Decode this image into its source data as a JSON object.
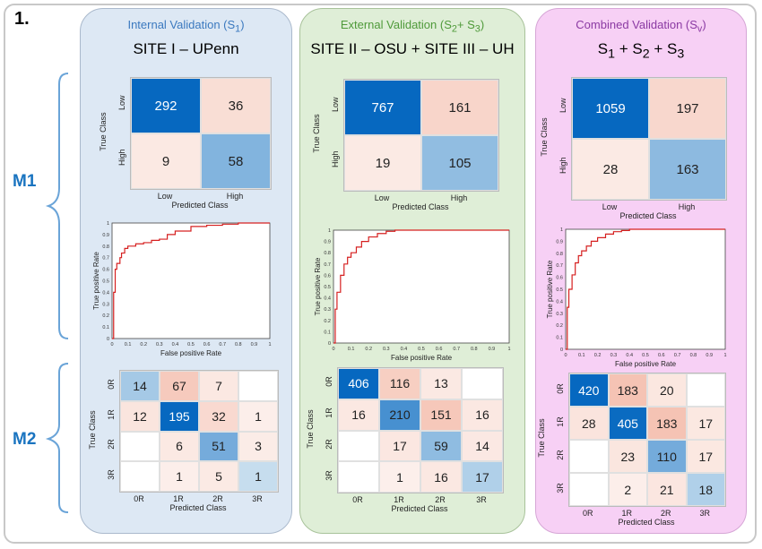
{
  "figure_number": "1.",
  "row_labels": [
    "M1",
    "M2"
  ],
  "panels": [
    {
      "title_main": "Internal   Validation (S",
      "title_sub": "1",
      "title_end": ")",
      "title_color": "#3b79bf",
      "site_label": "SITE I – UPenn"
    },
    {
      "title_main": "External Validation (S",
      "title_sub": "2",
      "title_mid": "+ S",
      "title_sub2": "3",
      "title_end": ")",
      "title_color": "#4f9a3a",
      "site_label": "SITE II – OSU + SITE III – UH"
    },
    {
      "title_main": "Combined Validation (S",
      "title_sub": "v",
      "title_end": ")",
      "title_color": "#8b3aa3",
      "site_label_parts": [
        "S",
        "1",
        " + S",
        "2",
        " + S",
        "3"
      ]
    }
  ],
  "chart_data": [
    {
      "type": "heatmap",
      "panel": "SITE I – UPenn",
      "model": "M1",
      "rows": [
        "Low",
        "High"
      ],
      "cols": [
        "Low",
        "High"
      ],
      "values": [
        [
          292,
          36
        ],
        [
          9,
          58
        ]
      ],
      "xlabel": "Predicted Class",
      "ylabel": "True Class"
    },
    {
      "type": "heatmap",
      "panel": "SITE II – OSU + SITE III – UH",
      "model": "M1",
      "rows": [
        "Low",
        "High"
      ],
      "cols": [
        "Low",
        "High"
      ],
      "values": [
        [
          767,
          161
        ],
        [
          19,
          105
        ]
      ],
      "xlabel": "Predicted Class",
      "ylabel": "True Class"
    },
    {
      "type": "heatmap",
      "panel": "S1 + S2 + S3",
      "model": "M1",
      "rows": [
        "Low",
        "High"
      ],
      "cols": [
        "Low",
        "High"
      ],
      "values": [
        [
          1059,
          197
        ],
        [
          28,
          163
        ]
      ],
      "xlabel": "Predicted Class",
      "ylabel": "True Class"
    },
    {
      "type": "line",
      "panel": "SITE I – UPenn",
      "model": "M1",
      "xlabel": "False positive Rate",
      "ylabel": "True positive Rate",
      "xlim": [
        0,
        1
      ],
      "ylim": [
        0,
        1
      ],
      "ticks": [
        "0",
        "0.1",
        "0.2",
        "0.3",
        "0.4",
        "0.5",
        "0.6",
        "0.7",
        "0.8",
        "0.9",
        "1"
      ],
      "x": [
        0,
        0.01,
        0.02,
        0.03,
        0.05,
        0.06,
        0.08,
        0.1,
        0.15,
        0.2,
        0.25,
        0.3,
        0.35,
        0.4,
        0.5,
        0.6,
        0.7,
        0.8,
        0.9,
        1.0
      ],
      "y": [
        0,
        0.4,
        0.6,
        0.65,
        0.7,
        0.74,
        0.78,
        0.8,
        0.82,
        0.83,
        0.85,
        0.86,
        0.9,
        0.93,
        0.97,
        0.98,
        0.99,
        1.0,
        1.0,
        1.0
      ],
      "color": "#d62020"
    },
    {
      "type": "line",
      "panel": "SITE II – OSU + SITE III – UH",
      "model": "M1",
      "xlabel": "False positive Rate",
      "ylabel": "True positive Rate",
      "xlim": [
        0,
        1
      ],
      "ylim": [
        0,
        1
      ],
      "ticks": [
        "0",
        "0.1",
        "0.2",
        "0.3",
        "0.4",
        "0.5",
        "0.6",
        "0.7",
        "0.8",
        "0.9",
        "1"
      ],
      "x": [
        0,
        0.01,
        0.02,
        0.04,
        0.06,
        0.08,
        0.1,
        0.13,
        0.16,
        0.2,
        0.25,
        0.3,
        0.35,
        0.4,
        0.5,
        0.6,
        0.7,
        0.8,
        0.9,
        1.0
      ],
      "y": [
        0,
        0.3,
        0.45,
        0.6,
        0.7,
        0.76,
        0.8,
        0.85,
        0.9,
        0.94,
        0.97,
        0.99,
        1.0,
        1.0,
        1.0,
        1.0,
        1.0,
        1.0,
        1.0,
        1.0
      ],
      "color": "#d62020"
    },
    {
      "type": "line",
      "panel": "S1 + S2 + S3",
      "model": "M1",
      "xlabel": "False positive Rate",
      "ylabel": "True positive Rate",
      "xlim": [
        0,
        1
      ],
      "ylim": [
        0,
        1
      ],
      "ticks": [
        "0",
        "0.1",
        "0.2",
        "0.3",
        "0.4",
        "0.5",
        "0.6",
        "0.7",
        "0.8",
        "0.9",
        "1"
      ],
      "x": [
        0,
        0.01,
        0.02,
        0.04,
        0.06,
        0.08,
        0.1,
        0.13,
        0.16,
        0.2,
        0.25,
        0.3,
        0.35,
        0.4,
        0.5,
        0.6,
        0.7,
        0.8,
        0.9,
        1.0
      ],
      "y": [
        0,
        0.35,
        0.5,
        0.62,
        0.72,
        0.78,
        0.82,
        0.86,
        0.9,
        0.93,
        0.96,
        0.98,
        0.99,
        1.0,
        1.0,
        1.0,
        1.0,
        1.0,
        1.0,
        1.0
      ],
      "color": "#d62020"
    },
    {
      "type": "heatmap",
      "panel": "SITE I – UPenn",
      "model": "M2",
      "rows": [
        "0R",
        "1R",
        "2R",
        "3R"
      ],
      "cols": [
        "0R",
        "1R",
        "2R",
        "3R"
      ],
      "values": [
        [
          14,
          67,
          7,
          null
        ],
        [
          12,
          195,
          32,
          1
        ],
        [
          null,
          6,
          51,
          3
        ],
        [
          null,
          1,
          5,
          1
        ]
      ],
      "xlabel": "Predicted Class",
      "ylabel": "True Class"
    },
    {
      "type": "heatmap",
      "panel": "SITE II – OSU + SITE III – UH",
      "model": "M2",
      "rows": [
        "0R",
        "1R",
        "2R",
        "3R"
      ],
      "cols": [
        "0R",
        "1R",
        "2R",
        "3R"
      ],
      "values": [
        [
          406,
          116,
          13,
          null
        ],
        [
          16,
          210,
          151,
          16
        ],
        [
          null,
          17,
          59,
          14
        ],
        [
          null,
          1,
          16,
          17
        ]
      ],
      "xlabel": "Predicted Class",
      "ylabel": "True Class"
    },
    {
      "type": "heatmap",
      "panel": "S1 + S2 + S3",
      "model": "M2",
      "rows": [
        "0R",
        "1R",
        "2R",
        "3R"
      ],
      "cols": [
        "0R",
        "1R",
        "2R",
        "3R"
      ],
      "values": [
        [
          420,
          183,
          20,
          null
        ],
        [
          28,
          405,
          183,
          17
        ],
        [
          null,
          23,
          110,
          17
        ],
        [
          null,
          2,
          21,
          18
        ]
      ],
      "xlabel": "Predicted Class",
      "ylabel": "True Class"
    }
  ]
}
